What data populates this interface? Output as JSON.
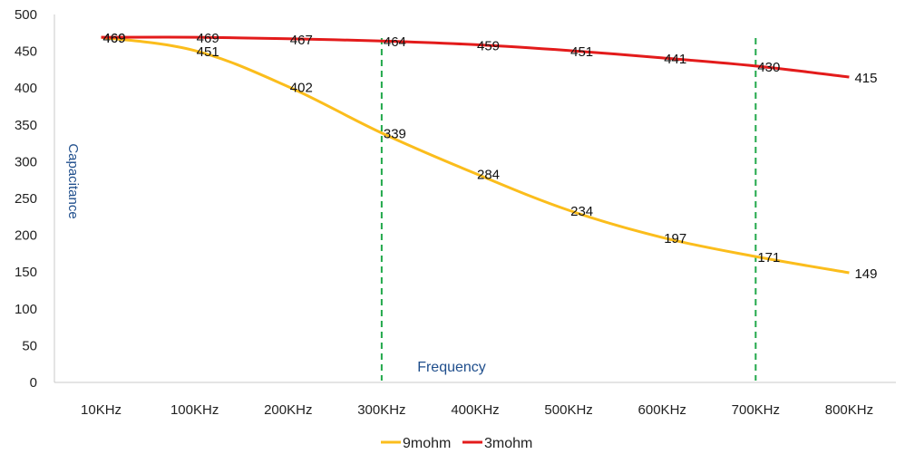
{
  "chart_data": {
    "type": "line",
    "categories": [
      "10KHz",
      "100KHz",
      "200KHz",
      "300KHz",
      "400KHz",
      "500KHz",
      "600KHz",
      "700KHz",
      "800KHz"
    ],
    "series": [
      {
        "name": "9mohm",
        "color": "#fbbd1c",
        "values": [
          469,
          451,
          402,
          339,
          284,
          234,
          197,
          171,
          149
        ]
      },
      {
        "name": "3mohm",
        "color": "#e31b1b",
        "values": [
          469,
          469,
          467,
          464,
          459,
          451,
          441,
          430,
          415
        ]
      }
    ],
    "yticks": [
      "0",
      "50",
      "100",
      "150",
      "200",
      "250",
      "300",
      "350",
      "400",
      "450",
      "500"
    ],
    "ylim": [
      0,
      500
    ],
    "ylabel": "Capacitance",
    "xlabel": "Frequency",
    "reference_lines": [
      {
        "category": "300KHz",
        "color": "#21a84a"
      },
      {
        "category": "700KHz",
        "color": "#21a84a"
      }
    ],
    "legend_position": "bottom",
    "grid": false,
    "axis_color": "#1f4e8c",
    "label_color": "#1f4e8c"
  }
}
